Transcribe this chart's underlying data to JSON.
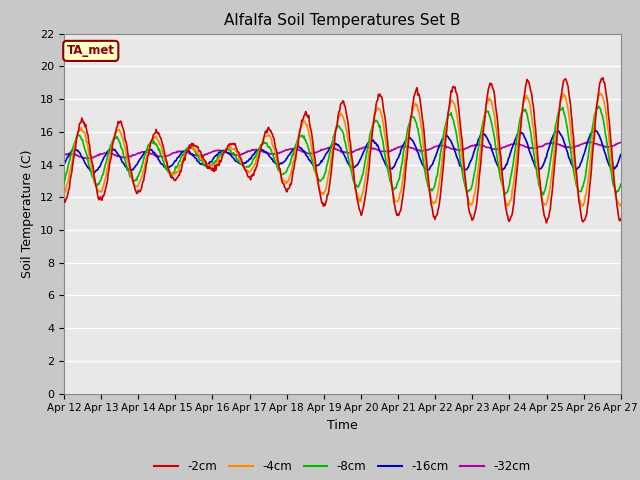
{
  "title": "Alfalfa Soil Temperatures Set B",
  "xlabel": "Time",
  "ylabel": "Soil Temperature (C)",
  "ylim": [
    0,
    22
  ],
  "yticks": [
    0,
    2,
    4,
    6,
    8,
    10,
    12,
    14,
    16,
    18,
    20,
    22
  ],
  "bg_color": "#e8e8e8",
  "grid_color": "#ffffff",
  "annotation_text": "TA_met",
  "annotation_bg": "#ffffcc",
  "annotation_border": "#8b0000",
  "annotation_text_color": "#8b0000",
  "legend_labels": [
    "-2cm",
    "-4cm",
    "-8cm",
    "-16cm",
    "-32cm"
  ],
  "line_colors": [
    "#cc0000",
    "#ff8800",
    "#00bb00",
    "#0000cc",
    "#aa00aa"
  ],
  "line_width": 1.2,
  "x_tick_labels": [
    "Apr 12",
    "Apr 13",
    "Apr 14",
    "Apr 15",
    "Apr 16",
    "Apr 17",
    "Apr 18",
    "Apr 19",
    "Apr 20",
    "Apr 21",
    "Apr 22",
    "Apr 23",
    "Apr 24",
    "Apr 25",
    "Apr 26",
    "Apr 27"
  ],
  "n_points": 720,
  "days": 15
}
